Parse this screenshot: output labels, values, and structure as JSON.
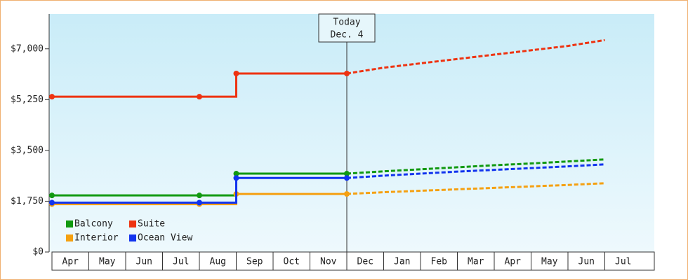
{
  "chart_data": {
    "type": "line",
    "categories": [
      "Apr",
      "May",
      "Jun",
      "Jul",
      "Aug",
      "Sep",
      "Oct",
      "Nov",
      "Dec",
      "Jan",
      "Feb",
      "Mar",
      "Apr",
      "May",
      "Jun",
      "Jul"
    ],
    "ylim": [
      0,
      8200
    ],
    "yticks": [
      {
        "value": 0,
        "label": "$0"
      },
      {
        "value": 1750,
        "label": "$1,750"
      },
      {
        "value": 3500,
        "label": "$3,500"
      },
      {
        "value": 5250,
        "label": "$5,250"
      },
      {
        "value": 7000,
        "label": "$7,000"
      }
    ],
    "annotation": {
      "category_index": 8,
      "line1": "Today",
      "line2": "Dec. 4"
    },
    "legend": "bottom-left",
    "series": [
      {
        "name": "Balcony",
        "color": "#119911",
        "values": [
          1950,
          1950,
          1950,
          1950,
          1950,
          2700,
          2700,
          2700,
          2700,
          null,
          null,
          null,
          null,
          null,
          null,
          null
        ],
        "forecast": [
          null,
          null,
          null,
          null,
          null,
          null,
          null,
          null,
          2700,
          2780,
          2850,
          2920,
          2990,
          3050,
          3120,
          3190
        ]
      },
      {
        "name": "Suite",
        "color": "#ee3311",
        "values": [
          5350,
          5350,
          5350,
          5350,
          5350,
          6150,
          6150,
          6150,
          6150,
          null,
          null,
          null,
          null,
          null,
          null,
          null
        ],
        "forecast": [
          null,
          null,
          null,
          null,
          null,
          null,
          null,
          null,
          6150,
          6350,
          6500,
          6650,
          6800,
          6950,
          7100,
          7300
        ]
      },
      {
        "name": "Interior",
        "color": "#f5a011",
        "values": [
          1650,
          1650,
          1650,
          1650,
          1650,
          2000,
          2000,
          2000,
          2000,
          null,
          null,
          null,
          null,
          null,
          null,
          null
        ],
        "forecast": [
          null,
          null,
          null,
          null,
          null,
          null,
          null,
          null,
          2000,
          2060,
          2110,
          2160,
          2210,
          2260,
          2310,
          2370
        ]
      },
      {
        "name": "Ocean View",
        "color": "#1133ee",
        "values": [
          1700,
          1700,
          1700,
          1700,
          1700,
          2550,
          2550,
          2550,
          2550,
          null,
          null,
          null,
          null,
          null,
          null,
          null
        ],
        "forecast": [
          null,
          null,
          null,
          null,
          null,
          null,
          null,
          null,
          2550,
          2630,
          2700,
          2770,
          2830,
          2890,
          2950,
          3020
        ]
      }
    ]
  }
}
